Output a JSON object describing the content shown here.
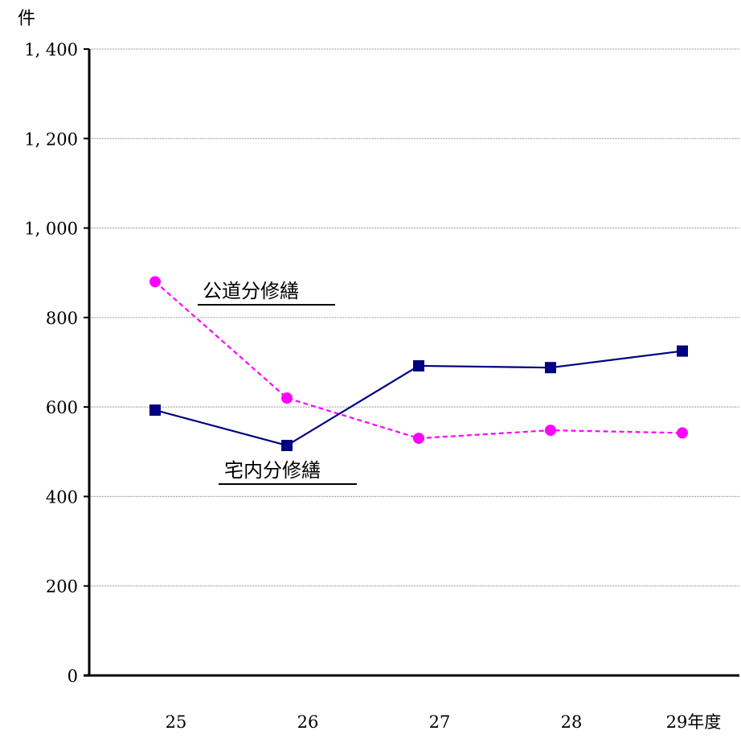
{
  "chart_data": {
    "type": "line",
    "y_unit_label": "件",
    "categories": [
      "25",
      "26",
      "27",
      "28",
      "29年度"
    ],
    "ylim": [
      0,
      1400
    ],
    "yticks": [
      0,
      200,
      400,
      600,
      800,
      1000,
      1200,
      1400
    ],
    "ytick_labels": [
      "0",
      "200",
      "400",
      "600",
      "800",
      "1, 000",
      "1, 200",
      "1, 400"
    ],
    "grid": true,
    "series": [
      {
        "name": "公道分修繕",
        "values": [
          880,
          620,
          530,
          548,
          542
        ],
        "color": "#ff00ff",
        "marker": "circle",
        "line_style": "dashed"
      },
      {
        "name": "宅内分修繕",
        "values": [
          593,
          514,
          692,
          688,
          725
        ],
        "color": "#000080",
        "marker": "square",
        "line_style": "solid"
      }
    ]
  }
}
